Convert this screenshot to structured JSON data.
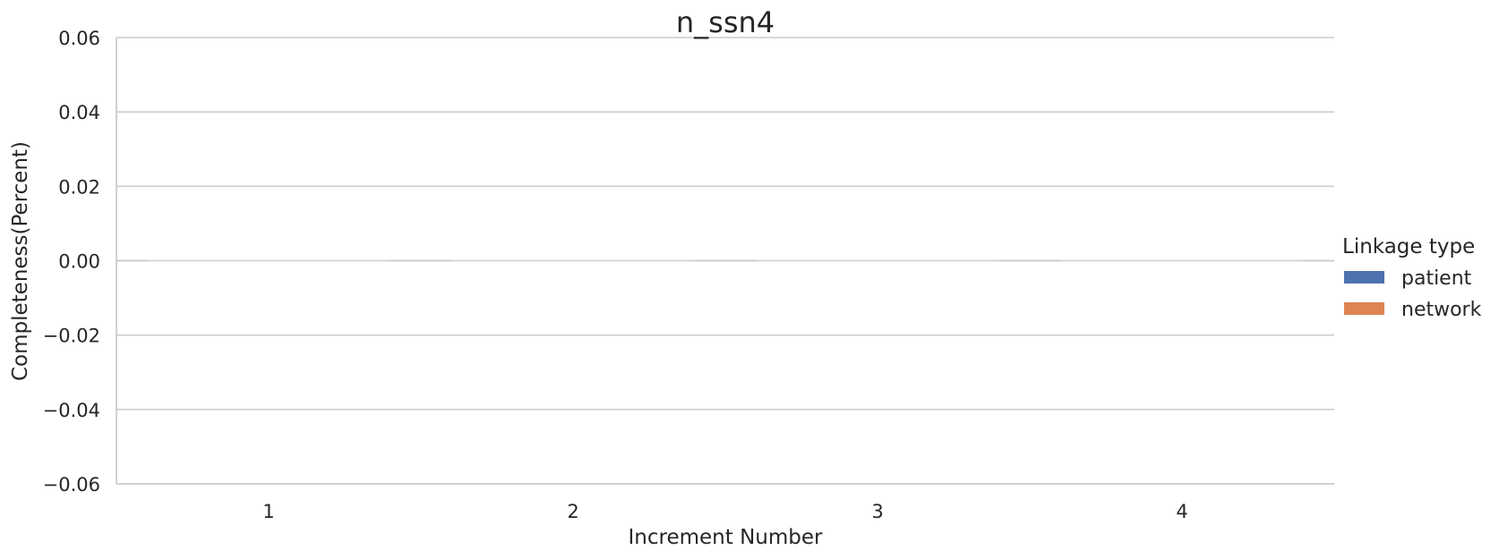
{
  "chart_data": {
    "type": "bar",
    "title": "n_ssn4",
    "xlabel": "Increment Number",
    "ylabel": "Completeness(Percent)",
    "categories": [
      "1",
      "2",
      "3",
      "4"
    ],
    "series": [
      {
        "name": "patient",
        "color": "#4c72b0",
        "values": [
          0,
          0,
          0,
          0
        ]
      },
      {
        "name": "network",
        "color": "#dd8452",
        "values": [
          0,
          0,
          0,
          0
        ]
      }
    ],
    "ylim": [
      -0.06,
      0.06
    ],
    "yticks": [
      -0.06,
      -0.04,
      -0.02,
      0.0,
      0.02,
      0.04,
      0.06
    ],
    "ytick_labels": [
      "−0.06",
      "−0.04",
      "−0.02",
      "0.00",
      "0.02",
      "0.04",
      "0.06"
    ],
    "grid": "horizontal",
    "legend": {
      "title": "Linkage type",
      "placement": "right",
      "entries": [
        "patient",
        "network"
      ]
    }
  }
}
